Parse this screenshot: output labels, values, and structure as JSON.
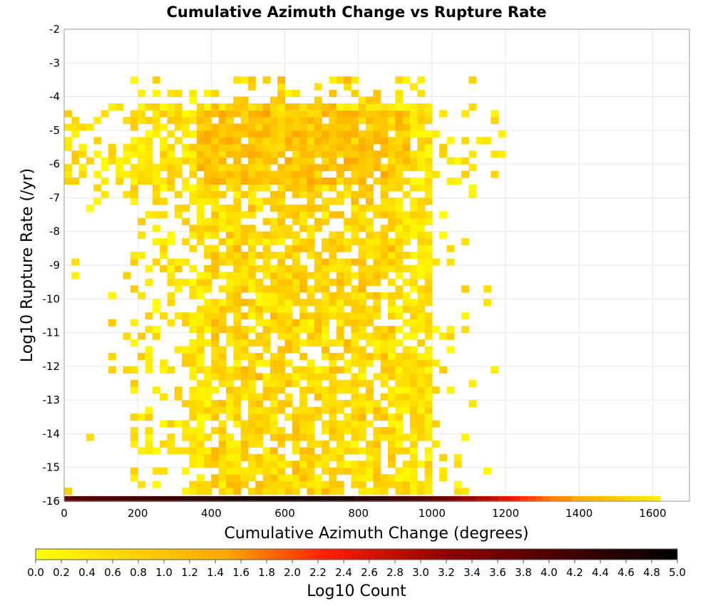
{
  "chart_data": {
    "type": "heatmap",
    "title": "Cumulative Azimuth Change vs Rupture Rate",
    "xlabel": "Cumulative Azimuth Change (degrees)",
    "ylabel": "Log10 Rupture Rate (/yr)",
    "xlim": [
      0,
      1700
    ],
    "ylim": [
      -16,
      -2
    ],
    "x_ticks": [
      0,
      200,
      400,
      600,
      800,
      1000,
      1200,
      1400,
      1600
    ],
    "y_ticks": [
      -2,
      -3,
      -4,
      -5,
      -6,
      -7,
      -8,
      -9,
      -10,
      -11,
      -12,
      -13,
      -14,
      -15,
      -16
    ],
    "grid": true,
    "bin_width_x": 20,
    "bin_height_y": 0.2,
    "colorbar": {
      "label": "Log10 Count",
      "range": [
        0.0,
        5.0
      ],
      "ticks": [
        "0.0",
        "0.2",
        "0.4",
        "0.6",
        "0.8",
        "1.0",
        "1.2",
        "1.4",
        "1.6",
        "1.8",
        "2.0",
        "2.2",
        "2.4",
        "2.6",
        "2.8",
        "3.0",
        "3.2",
        "3.4",
        "3.6",
        "3.8",
        "4.0",
        "4.2",
        "4.4",
        "4.6",
        "4.8",
        "5.0"
      ],
      "colors": [
        "#ffff00",
        "#ffa500",
        "#ff0000",
        "#7f0000",
        "#000000"
      ]
    },
    "description_of_bins": {
      "main_cloud": {
        "x_range": [
          0,
          1200
        ],
        "y_range": [
          -15.9,
          -3.5
        ],
        "log10_count_range": [
          0.0,
          1.4
        ]
      },
      "bottom_row": {
        "y": -16,
        "x_range": [
          0,
          1620
        ],
        "log10_count_profile": [
          [
            0,
            3.8
          ],
          [
            300,
            4.3
          ],
          [
            600,
            4.8
          ],
          [
            800,
            4.5
          ],
          [
            1000,
            3.8
          ],
          [
            1200,
            2.4
          ],
          [
            1400,
            1.4
          ],
          [
            1620,
            0.2
          ]
        ]
      }
    }
  }
}
